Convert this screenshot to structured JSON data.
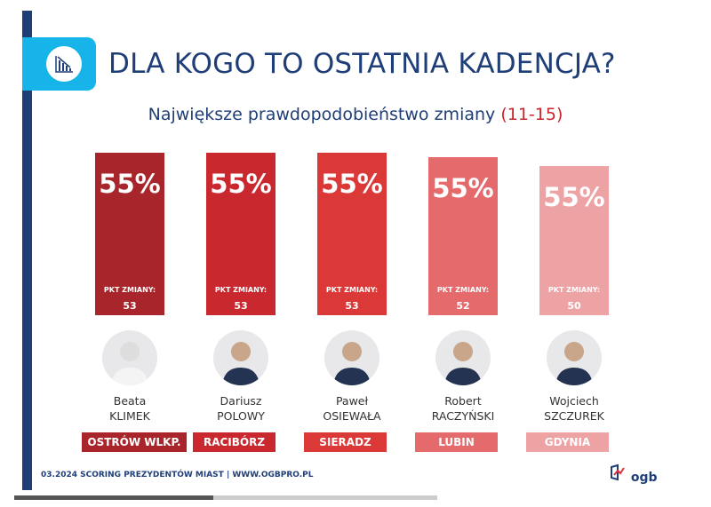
{
  "header": {
    "title": "DLA KOGO TO OSTATNIA KADENCJA?",
    "subtitle": "Największe prawdopodobieństwo zmiany",
    "subtitle_range": "(11-15)",
    "icon": "declining-chart-icon"
  },
  "chart_data": {
    "type": "bar",
    "title": "DLA KOGO TO OSTATNIA KADENCJA?",
    "subtitle": "Największe prawdopodobieństwo zmiany (11-15)",
    "categories": [
      "Beata KLIMEK",
      "Dariusz POLOWY",
      "Paweł OSIEWAŁA",
      "Robert RACZYŃSKI",
      "Wojciech SZCZUREK"
    ],
    "values": [
      53,
      53,
      53,
      52,
      50
    ],
    "items": [
      {
        "pct": "55%",
        "label": "PKT ZMIANY:",
        "points": "53",
        "first": "Beata",
        "last": "KLIMEK",
        "city": "OSTRÓW WLKP.",
        "color": "#a8262b"
      },
      {
        "pct": "55%",
        "label": "PKT ZMIANY:",
        "points": "53",
        "first": "Dariusz",
        "last": "POLOWY",
        "city": "RACIBÓRZ",
        "color": "#c9282e"
      },
      {
        "pct": "55%",
        "label": "PKT ZMIANY:",
        "points": "53",
        "first": "Paweł",
        "last": "OSIEWAŁA",
        "city": "SIERADZ",
        "color": "#db3838"
      },
      {
        "pct": "55%",
        "label": "PKT ZMIANY:",
        "points": "52",
        "first": "Robert",
        "last": "RACZYŃSKI",
        "city": "LUBIN",
        "color": "#e46a6c"
      },
      {
        "pct": "55%",
        "label": "PKT ZMIANY:",
        "points": "50",
        "first": "Wojciech",
        "last": "SZCZUREK",
        "city": "GDYNIA",
        "color": "#eda2a4"
      }
    ]
  },
  "footer": {
    "text": "03.2024 SCORING PREZYDENTÓW MIAST | WWW.OGBPRO.PL",
    "logo": "ogb"
  },
  "colors": {
    "navy": "#1f3e78",
    "cyan": "#16b4e8"
  }
}
